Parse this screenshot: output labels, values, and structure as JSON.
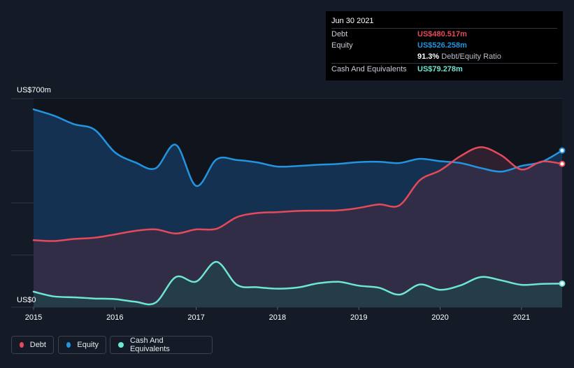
{
  "colors": {
    "background": "#151b26",
    "debt": "#e64a5a",
    "equity": "#2394df",
    "cash": "#6ee6d3",
    "grid": "#2e3542",
    "axis_text": "#ffffff"
  },
  "tooltip": {
    "date": "Jun 30 2021",
    "debt_label": "Debt",
    "debt_value": "US$480.517m",
    "equity_label": "Equity",
    "equity_value": "US$526.258m",
    "ratio_value": "91.3%",
    "ratio_label": "Debt/Equity Ratio",
    "cash_label": "Cash And Equivalents",
    "cash_value": "US$79.278m"
  },
  "legend": [
    {
      "key": "debt",
      "label": "Debt"
    },
    {
      "key": "equity",
      "label": "Equity"
    },
    {
      "key": "cash",
      "label": "Cash And Equivalents"
    }
  ],
  "chart_data": {
    "type": "area",
    "y_top_label": "US$700m",
    "y_bottom_label": "US$0",
    "ylim": [
      0,
      700
    ],
    "xlim": [
      2015.0,
      2021.5
    ],
    "x_ticks": [
      2015,
      2016,
      2017,
      2018,
      2019,
      2020,
      2021
    ],
    "x_tick_labels": [
      "2015",
      "2016",
      "2017",
      "2018",
      "2019",
      "2020",
      "2021"
    ],
    "grid": true,
    "legend_position": "bottom-left",
    "series": [
      {
        "key": "equity",
        "name": "Equity",
        "points": [
          [
            2015.0,
            664
          ],
          [
            2015.25,
            643
          ],
          [
            2015.5,
            614
          ],
          [
            2015.75,
            596
          ],
          [
            2016.0,
            520
          ],
          [
            2016.25,
            486
          ],
          [
            2016.5,
            466
          ],
          [
            2016.75,
            545
          ],
          [
            2017.0,
            407
          ],
          [
            2017.25,
            496
          ],
          [
            2017.5,
            494
          ],
          [
            2017.75,
            486
          ],
          [
            2018.0,
            472
          ],
          [
            2018.25,
            474
          ],
          [
            2018.5,
            478
          ],
          [
            2018.75,
            481
          ],
          [
            2019.0,
            487
          ],
          [
            2019.25,
            488
          ],
          [
            2019.5,
            484
          ],
          [
            2019.75,
            498
          ],
          [
            2020.0,
            490
          ],
          [
            2020.25,
            484
          ],
          [
            2020.5,
            467
          ],
          [
            2020.75,
            455
          ],
          [
            2021.0,
            474
          ],
          [
            2021.25,
            488
          ],
          [
            2021.5,
            526
          ]
        ]
      },
      {
        "key": "debt",
        "name": "Debt",
        "points": [
          [
            2015.0,
            225
          ],
          [
            2015.25,
            222
          ],
          [
            2015.5,
            229
          ],
          [
            2015.75,
            233
          ],
          [
            2016.0,
            244
          ],
          [
            2016.25,
            256
          ],
          [
            2016.5,
            261
          ],
          [
            2016.75,
            247
          ],
          [
            2017.0,
            261
          ],
          [
            2017.25,
            263
          ],
          [
            2017.5,
            302
          ],
          [
            2017.75,
            316
          ],
          [
            2018.0,
            319
          ],
          [
            2018.25,
            323
          ],
          [
            2018.5,
            324
          ],
          [
            2018.75,
            325
          ],
          [
            2019.0,
            333
          ],
          [
            2019.25,
            345
          ],
          [
            2019.5,
            342
          ],
          [
            2019.75,
            426
          ],
          [
            2020.0,
            459
          ],
          [
            2020.25,
            507
          ],
          [
            2020.5,
            537
          ],
          [
            2020.75,
            510
          ],
          [
            2021.0,
            462
          ],
          [
            2021.25,
            489
          ],
          [
            2021.5,
            481
          ]
        ]
      },
      {
        "key": "cash",
        "name": "Cash And Equivalents",
        "points": [
          [
            2015.0,
            52
          ],
          [
            2015.25,
            36
          ],
          [
            2015.5,
            33
          ],
          [
            2015.75,
            29
          ],
          [
            2016.0,
            27
          ],
          [
            2016.25,
            18
          ],
          [
            2016.5,
            15
          ],
          [
            2016.75,
            101
          ],
          [
            2017.0,
            86
          ],
          [
            2017.25,
            152
          ],
          [
            2017.5,
            75
          ],
          [
            2017.75,
            67
          ],
          [
            2018.0,
            62
          ],
          [
            2018.25,
            66
          ],
          [
            2018.5,
            80
          ],
          [
            2018.75,
            85
          ],
          [
            2019.0,
            72
          ],
          [
            2019.25,
            65
          ],
          [
            2019.5,
            42
          ],
          [
            2019.75,
            76
          ],
          [
            2020.0,
            58
          ],
          [
            2020.25,
            73
          ],
          [
            2020.5,
            101
          ],
          [
            2020.75,
            90
          ],
          [
            2021.0,
            75
          ],
          [
            2021.25,
            78
          ],
          [
            2021.5,
            79
          ]
        ]
      }
    ]
  }
}
